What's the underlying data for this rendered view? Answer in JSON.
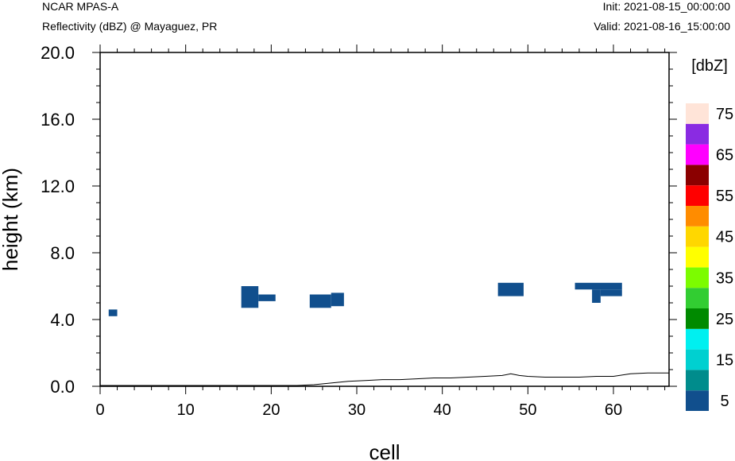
{
  "header": {
    "model": "NCAR MPAS-A",
    "field": "Reflectivity (dBZ) @ Mayaguez, PR",
    "init": "Init: 2021-08-15_00:00:00",
    "valid": "Valid: 2021-08-16_15:00:00"
  },
  "chart_data": {
    "type": "heatmap",
    "xlabel": "cell",
    "ylabel": "height (km)",
    "xlim": [
      0,
      66.5
    ],
    "ylim": [
      0,
      20
    ],
    "x_ticks": [
      "0",
      "10",
      "20",
      "30",
      "40",
      "50",
      "60"
    ],
    "y_ticks": [
      "0.0",
      "4.0",
      "8.0",
      "12.0",
      "16.0",
      "20.0"
    ],
    "colorbar": {
      "unit_label": "[dbZ]",
      "tick_labels": [
        "5",
        "15",
        "25",
        "35",
        "45",
        "55",
        "65",
        "75"
      ],
      "colors": [
        "#114f8d",
        "#008c8c",
        "#00d0d0",
        "#00f0f0",
        "#008a00",
        "#32cd32",
        "#7cfc00",
        "#ffff00",
        "#ffd700",
        "#ff8c00",
        "#ff0000",
        "#8b0000",
        "#ff00ff",
        "#8a2be2",
        "#ffe4d8"
      ]
    },
    "reflectivity_cells": [
      {
        "x0": 1,
        "x1": 2,
        "y0": 4.2,
        "y1": 4.6,
        "dbz": 5
      },
      {
        "x0": 16.5,
        "x1": 18.5,
        "y0": 4.7,
        "y1": 6.0,
        "dbz": 5
      },
      {
        "x0": 18.5,
        "x1": 20.5,
        "y0": 5.1,
        "y1": 5.5,
        "dbz": 5
      },
      {
        "x0": 24.5,
        "x1": 27,
        "y0": 4.7,
        "y1": 5.5,
        "dbz": 5
      },
      {
        "x0": 27,
        "x1": 28.5,
        "y0": 4.8,
        "y1": 5.6,
        "dbz": 5
      },
      {
        "x0": 46.5,
        "x1": 49.5,
        "y0": 5.4,
        "y1": 6.2,
        "dbz": 5
      },
      {
        "x0": 55.5,
        "x1": 61,
        "y0": 5.8,
        "y1": 6.2,
        "dbz": 5
      },
      {
        "x0": 58.5,
        "x1": 61,
        "y0": 5.4,
        "y1": 5.8,
        "dbz": 5
      },
      {
        "x0": 57.5,
        "x1": 58.5,
        "y0": 5.0,
        "y1": 5.8,
        "dbz": 5
      }
    ],
    "terrain": {
      "x": [
        0,
        23,
        25,
        27,
        29,
        31,
        33,
        35,
        37,
        39,
        41,
        43,
        45,
        47,
        48,
        49,
        50,
        52,
        54,
        56,
        58,
        60,
        62,
        64,
        66.5
      ],
      "y": [
        0,
        0,
        0.05,
        0.15,
        0.25,
        0.3,
        0.35,
        0.35,
        0.4,
        0.45,
        0.45,
        0.5,
        0.55,
        0.6,
        0.7,
        0.6,
        0.55,
        0.5,
        0.5,
        0.5,
        0.55,
        0.55,
        0.7,
        0.75,
        0.75
      ]
    }
  }
}
